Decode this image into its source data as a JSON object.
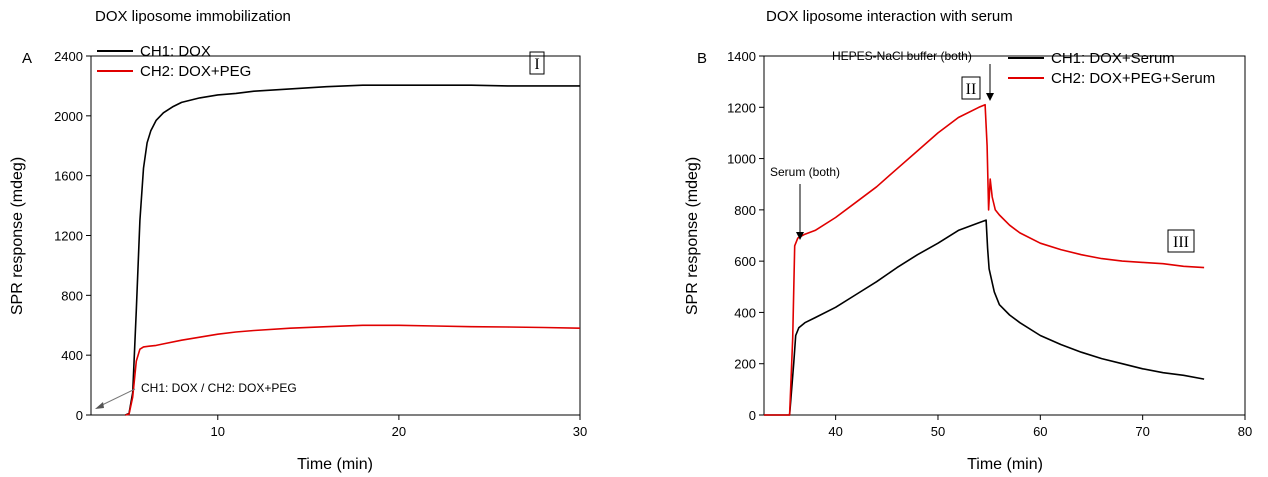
{
  "chart_data": [
    {
      "type": "line",
      "panel": "A",
      "title": "DOX liposome immobilization",
      "xlabel": "Time (min)",
      "ylabel": "SPR response (mdeg)",
      "xlim": [
        3,
        30
      ],
      "ylim": [
        0,
        2400
      ],
      "xticks": [
        10,
        20,
        30
      ],
      "yticks": [
        0,
        400,
        800,
        1200,
        1600,
        2000,
        2400
      ],
      "legend_position": "top-left",
      "grid": false,
      "series": [
        {
          "name": "CH1: DOX",
          "color": "#000000",
          "x": [
            4.9,
            5.1,
            5.3,
            5.5,
            5.7,
            5.9,
            6.1,
            6.3,
            6.6,
            7.0,
            7.5,
            8.0,
            9.0,
            10,
            11,
            12,
            14,
            16,
            18,
            20,
            22,
            24,
            26,
            28,
            30
          ],
          "y": [
            0,
            10,
            150,
            700,
            1300,
            1650,
            1820,
            1900,
            1970,
            2020,
            2060,
            2090,
            2120,
            2140,
            2150,
            2165,
            2180,
            2195,
            2205,
            2205,
            2205,
            2205,
            2200,
            2200,
            2200
          ]
        },
        {
          "name": "CH2: DOX+PEG",
          "color": "#e00000",
          "x": [
            4.9,
            5.1,
            5.3,
            5.5,
            5.7,
            5.9,
            6.2,
            6.6,
            7.0,
            8.0,
            9.0,
            10,
            11,
            12,
            14,
            16,
            18,
            20,
            22,
            24,
            26,
            28,
            30
          ],
          "y": [
            0,
            5,
            120,
            360,
            440,
            455,
            460,
            465,
            475,
            500,
            520,
            540,
            555,
            565,
            580,
            590,
            600,
            600,
            595,
            590,
            588,
            585,
            580
          ]
        }
      ],
      "annotations": [
        {
          "text": "CH1: DOX / CH2: DOX+PEG",
          "x": 5.2,
          "y": 10
        },
        {
          "text": "I",
          "x": 27.8,
          "y": 2300
        }
      ]
    },
    {
      "type": "line",
      "panel": "B",
      "title": "DOX liposome interaction with serum",
      "xlabel": "Time (min)",
      "ylabel": "SPR response (mdeg)",
      "xlim": [
        33,
        80
      ],
      "ylim": [
        0,
        1400
      ],
      "xticks": [
        40,
        50,
        60,
        70,
        80
      ],
      "yticks": [
        0,
        200,
        400,
        600,
        800,
        1000,
        1200,
        1400
      ],
      "legend_position": "top-right",
      "grid": false,
      "series": [
        {
          "name": "CH1: DOX+Serum",
          "color": "#000000",
          "x": [
            33,
            35.5,
            35.9,
            36.1,
            36.4,
            37,
            38,
            40,
            42,
            44,
            46,
            48,
            50,
            52,
            54,
            54.7,
            54.85,
            55,
            55.5,
            56,
            57,
            58,
            60,
            62,
            64,
            66,
            68,
            70,
            72,
            74,
            76
          ],
          "y": [
            0,
            0,
            200,
            310,
            340,
            360,
            380,
            420,
            470,
            520,
            575,
            625,
            670,
            720,
            750,
            760,
            650,
            570,
            480,
            430,
            390,
            360,
            310,
            275,
            245,
            220,
            200,
            180,
            165,
            155,
            140
          ]
        },
        {
          "name": "CH2: DOX+PEG+Serum",
          "color": "#e00000",
          "x": [
            33,
            35.5,
            35.8,
            36.0,
            36.3,
            37,
            38,
            40,
            42,
            44,
            46,
            48,
            50,
            52,
            54,
            54.6,
            54.8,
            54.95,
            55.1,
            55.3,
            55.6,
            56,
            57,
            58,
            60,
            62,
            64,
            66,
            68,
            70,
            72,
            74,
            76
          ],
          "y": [
            0,
            0,
            300,
            660,
            690,
            705,
            720,
            770,
            830,
            890,
            960,
            1030,
            1100,
            1160,
            1200,
            1210,
            1050,
            800,
            920,
            850,
            800,
            780,
            740,
            710,
            670,
            645,
            625,
            610,
            600,
            595,
            590,
            580,
            575
          ]
        }
      ],
      "annotations": [
        {
          "text": "Serum (both)",
          "x": 36,
          "y": 680
        },
        {
          "text": "HEPES-NaCl buffer (both)",
          "x": 54.8,
          "y": 1220
        },
        {
          "text": "II",
          "x": 52.5,
          "y": 1260
        },
        {
          "text": "III",
          "x": 71.5,
          "y": 670
        }
      ]
    }
  ]
}
